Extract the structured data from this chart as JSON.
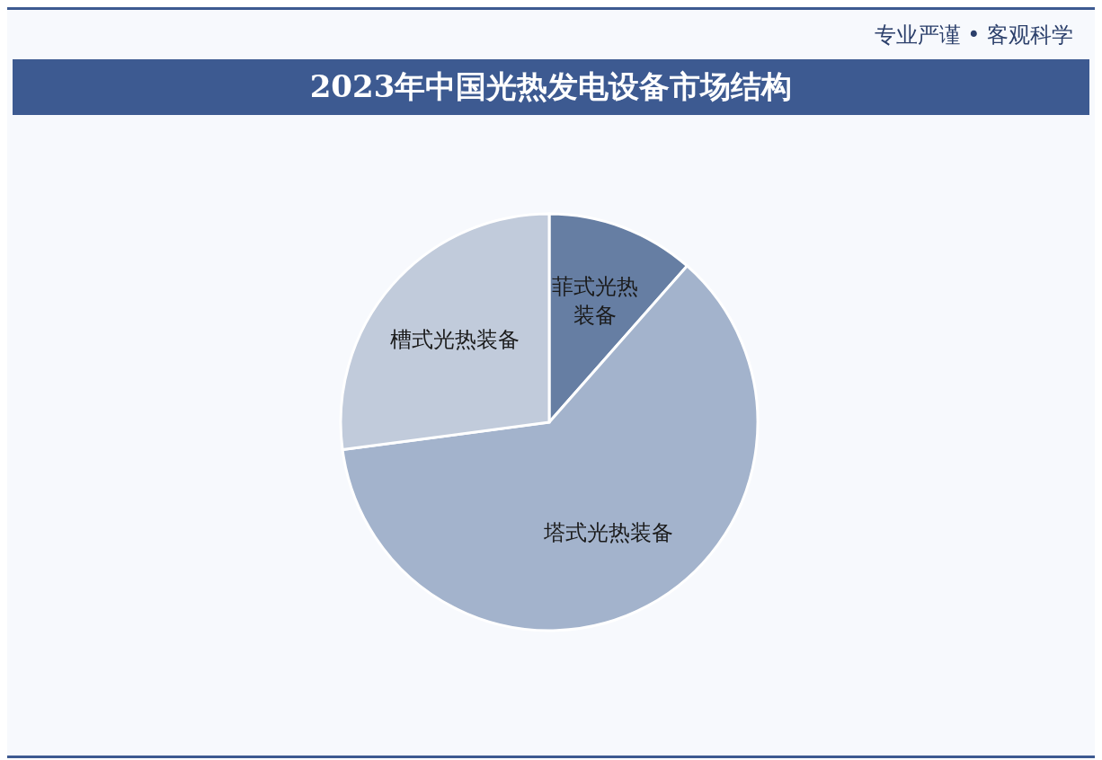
{
  "chart_data": {
    "type": "pie",
    "title": "2023年中国光热发电设备市场结构",
    "subtitle": "专业严谨 • 客观科学",
    "categories": [
      "菲式光热装备",
      "塔式光热装备",
      "槽式光热装备"
    ],
    "values": [
      11.5,
      61.4,
      27.1
    ],
    "colors": [
      "#667ea3",
      "#a3b3cc",
      "#c1cbdb"
    ],
    "legend": false
  }
}
